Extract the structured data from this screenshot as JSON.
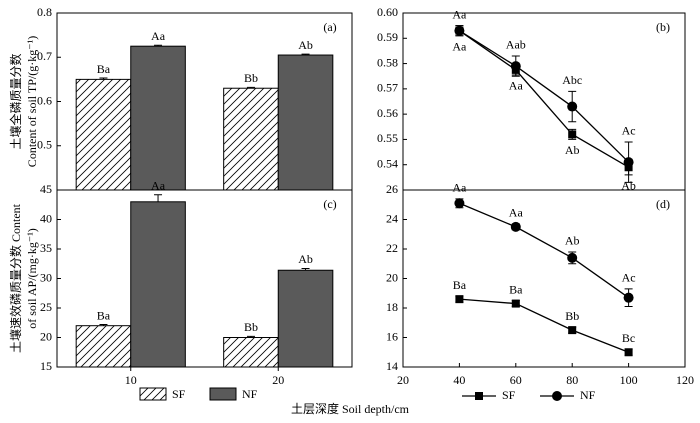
{
  "xlabel": "土层深度 Soil depth/cm",
  "chart_data": [
    {
      "type": "bar",
      "panel": "(a)",
      "ylabel": [
        "土壤全磷质量分数",
        "Content of soil TP/(g·kg⁻¹)"
      ],
      "ylim": [
        0.4,
        0.8
      ],
      "yticks": [
        0.5,
        0.6,
        0.7,
        0.8
      ],
      "series": [
        {
          "color": "#ffffff",
          "hatch": true,
          "values": [
            0.65,
            0.63
          ],
          "errors": [
            0.003,
            0.002
          ],
          "value_labels": [
            "Ba",
            "Bb"
          ]
        },
        {
          "color": "#5a5a5a",
          "hatch": false,
          "values": [
            0.725,
            0.705
          ],
          "errors": [
            0.002,
            0.002
          ],
          "value_labels": [
            "Aa",
            "Ab"
          ]
        }
      ]
    },
    {
      "type": "line",
      "panel": "(b)",
      "x": [
        40,
        60,
        80,
        100
      ],
      "xlim": [
        20,
        120
      ],
      "ylim": [
        0.53,
        0.6
      ],
      "yticks": [
        0.54,
        0.55,
        0.56,
        0.57,
        0.58,
        0.59,
        {
          "value": 0.6,
          "label": "0.60"
        }
      ],
      "series": [
        {
          "color": "#000000",
          "marker": "square",
          "values": [
            0.593,
            0.5775,
            0.552,
            0.539
          ],
          "errors": [
            0.002,
            0.002,
            0.002,
            0.003
          ],
          "value_labels": [
            "Aa",
            "Aa",
            "Ab",
            "Ab"
          ]
        },
        {
          "color": "#000000",
          "marker": "circle",
          "values": [
            0.593,
            0.579,
            0.563,
            0.541
          ],
          "errors": [
            0.002,
            0.004,
            0.006,
            0.008
          ],
          "value_labels": [
            "Aa",
            "Aab",
            "Abc",
            "Ac"
          ]
        }
      ]
    },
    {
      "type": "bar",
      "panel": "(c)",
      "ylabel": [
        "土壤速效磷质量分数 Content",
        "of soil AP/(mg·kg⁻¹)"
      ],
      "categories": [
        "10",
        "20"
      ],
      "ylim": [
        15,
        45
      ],
      "yticks": [
        15,
        20,
        25,
        30,
        35,
        40,
        45
      ],
      "series": [
        {
          "name": "SF",
          "color": "#ffffff",
          "hatch": true,
          "values": [
            22,
            20
          ],
          "errors": [
            0.2,
            0.2
          ],
          "value_labels": [
            "Ba",
            "Bb"
          ]
        },
        {
          "name": "NF",
          "color": "#5a5a5a",
          "hatch": false,
          "values": [
            43,
            31.4
          ],
          "errors": [
            1.2,
            0.3
          ],
          "value_labels": [
            "Aa",
            "Ab"
          ]
        }
      ]
    },
    {
      "type": "line",
      "panel": "(d)",
      "x": [
        40,
        60,
        80,
        100
      ],
      "xlim": [
        20,
        120
      ],
      "xticks": [
        20,
        40,
        60,
        80,
        100,
        120
      ],
      "ylim": [
        14,
        26
      ],
      "yticks": [
        14,
        16,
        18,
        20,
        22,
        24,
        26
      ],
      "series": [
        {
          "name": "SF",
          "color": "#000000",
          "marker": "square",
          "values": [
            18.6,
            18.3,
            16.5,
            15.0
          ],
          "errors": [
            0.2,
            0.2,
            0.2,
            0.2
          ],
          "value_labels": [
            "Ba",
            "Ba",
            "Bb",
            "Bc"
          ]
        },
        {
          "name": "NF",
          "color": "#000000",
          "marker": "circle",
          "values": [
            25.1,
            23.5,
            21.4,
            18.7
          ],
          "errors": [
            0.3,
            0.2,
            0.4,
            0.6
          ],
          "value_labels": [
            "Aa",
            "Aa",
            "Ab",
            "Ac"
          ]
        }
      ]
    }
  ]
}
